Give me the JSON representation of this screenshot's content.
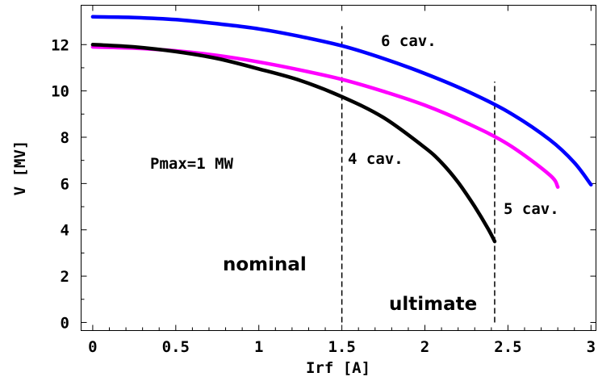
{
  "chart_data": {
    "type": "line",
    "xlabel": "Irf [A]",
    "ylabel": "V [MV]",
    "xlim": [
      -0.07,
      3.03
    ],
    "ylim": [
      -0.35,
      13.7
    ],
    "xticks": [
      0,
      0.5,
      1,
      1.5,
      2,
      2.5,
      3
    ],
    "xtick_labels": [
      "0",
      "0.5",
      "1",
      "1.5",
      "2",
      "2.5",
      "3"
    ],
    "yticks": [
      0,
      2,
      4,
      6,
      8,
      10,
      12
    ],
    "ytick_labels": [
      "0",
      "2",
      "4",
      "6",
      "8",
      "10",
      "12"
    ],
    "grid": false,
    "series": [
      {
        "name": "6 cav.",
        "color": "#0000ff",
        "x": [
          0,
          0.25,
          0.5,
          0.75,
          1.0,
          1.25,
          1.5,
          1.75,
          2.0,
          2.25,
          2.5,
          2.75,
          2.9,
          3.0
        ],
        "y": [
          13.2,
          13.17,
          13.08,
          12.9,
          12.68,
          12.35,
          11.95,
          11.4,
          10.75,
          10.0,
          9.1,
          7.9,
          6.9,
          5.95
        ]
      },
      {
        "name": "5 cav.",
        "color": "#ff00ff",
        "x": [
          0,
          0.25,
          0.5,
          0.75,
          1.0,
          1.25,
          1.5,
          1.75,
          2.0,
          2.25,
          2.5,
          2.75,
          2.8
        ],
        "y": [
          11.9,
          11.85,
          11.73,
          11.53,
          11.25,
          10.9,
          10.5,
          9.98,
          9.38,
          8.62,
          7.7,
          6.38,
          5.85
        ]
      },
      {
        "name": "4 cav.",
        "color": "#000000",
        "x": [
          0,
          0.25,
          0.5,
          0.75,
          1.0,
          1.25,
          1.5,
          1.75,
          2.0,
          2.1,
          2.2,
          2.3,
          2.38,
          2.42
        ],
        "y": [
          12.0,
          11.9,
          11.7,
          11.4,
          10.95,
          10.45,
          9.75,
          8.85,
          7.55,
          6.9,
          6.05,
          5.0,
          4.05,
          3.5
        ]
      }
    ],
    "vlines": [
      {
        "x": 1.5,
        "y_from": 0,
        "y_to": 12.8,
        "label": "nominal"
      },
      {
        "x": 2.42,
        "y_from": 0,
        "y_to": 10.4,
        "label": "ultimate"
      }
    ],
    "annotations": [
      "6 cav.",
      "4 cav.",
      "5 cav.",
      "Pmax=1 MW"
    ]
  }
}
